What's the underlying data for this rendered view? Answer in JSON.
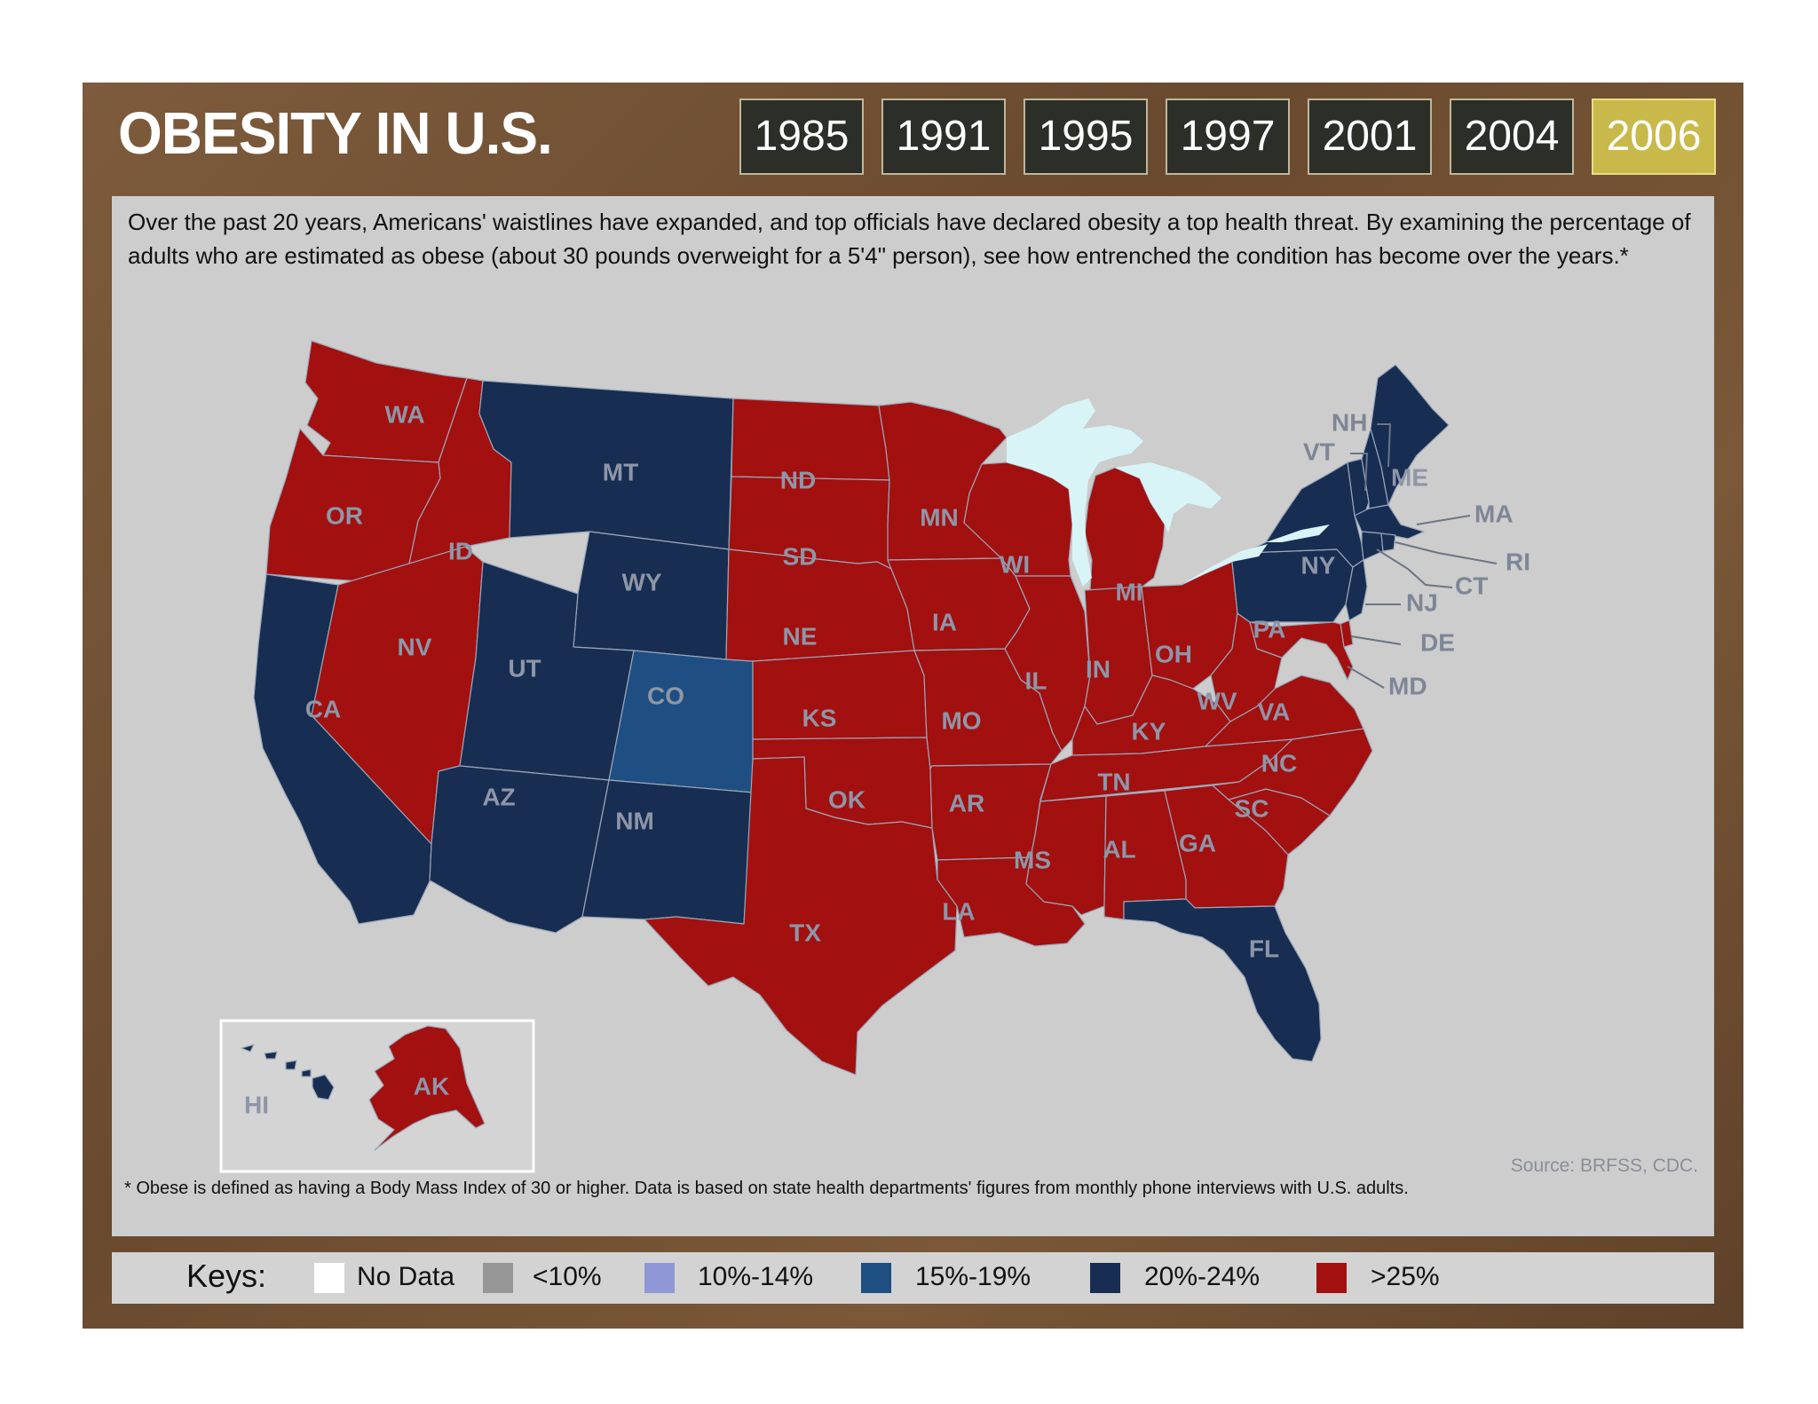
{
  "title": "OBESITY IN U.S.",
  "years": [
    "1985",
    "1991",
    "1995",
    "1997",
    "2001",
    "2004",
    "2006"
  ],
  "selected_year": "2006",
  "intro": "Over the past 20 years, Americans' waistlines have expanded, and top officials have declared obesity a top health threat. By examining the percentage of adults who are estimated as obese (about 30 pounds overweight for a 5'4\" person), see how entrenched the condition has become over the years.*",
  "source": "Source: BRFSS, CDC.",
  "footnote": "* Obese is defined as having a Body Mass Index of 30 or higher. Data is based on state health departments' figures from monthly phone interviews with U.S. adults.",
  "keys": {
    "label": "Keys:",
    "items": [
      {
        "label": "No Data",
        "color": "#ffffff"
      },
      {
        "label": "<10%",
        "color": "#979797"
      },
      {
        "label": "10%-14%",
        "color": "#8f97d6"
      },
      {
        "label": "15%-19%",
        "color": "#1f4e82"
      },
      {
        "label": "20%-24%",
        "color": "#172d52"
      },
      {
        "label": ">25%",
        "color": "#a21010"
      }
    ]
  },
  "colors": {
    "red": "#a21010",
    "navy": "#172d52",
    "blue": "#1f4e82",
    "lakes": "#d8f4f6",
    "frame": "#6f4f32"
  },
  "map": {
    "state_labels": {
      "WA": "WA",
      "OR": "OR",
      "CA": "CA",
      "ID": "ID",
      "NV": "NV",
      "MT": "MT",
      "WY": "WY",
      "UT": "UT",
      "CO": "CO",
      "AZ": "AZ",
      "NM": "NM",
      "ND": "ND",
      "SD": "SD",
      "NE": "NE",
      "KS": "KS",
      "OK": "OK",
      "TX": "TX",
      "MN": "MN",
      "IA": "IA",
      "MO": "MO",
      "AR": "AR",
      "LA": "LA",
      "WI": "WI",
      "IL": "IL",
      "MI": "MI",
      "IN": "IN",
      "OH": "OH",
      "KY": "KY",
      "TN": "TN",
      "MS": "MS",
      "AL": "AL",
      "GA": "GA",
      "FL": "FL",
      "SC": "SC",
      "NC": "NC",
      "VA": "VA",
      "WV": "WV",
      "PA": "PA",
      "NY": "NY",
      "ME": "ME",
      "NH": "NH",
      "VT": "VT",
      "MA": "MA",
      "RI": "RI",
      "CT": "CT",
      "NJ": "NJ",
      "DE": "DE",
      "MD": "MD",
      "HI": "HI",
      "AK": "AK"
    },
    "state_ranges": {
      "WA": ">25%",
      "OR": ">25%",
      "CA": "20%-24%",
      "ID": ">25%",
      "NV": ">25%",
      "MT": "20%-24%",
      "WY": "20%-24%",
      "UT": "20%-24%",
      "CO": "15%-19%",
      "AZ": "20%-24%",
      "NM": "20%-24%",
      "ND": ">25%",
      "SD": ">25%",
      "NE": ">25%",
      "KS": ">25%",
      "OK": ">25%",
      "TX": ">25%",
      "MN": ">25%",
      "IA": ">25%",
      "MO": ">25%",
      "AR": ">25%",
      "LA": ">25%",
      "WI": ">25%",
      "IL": ">25%",
      "MI": ">25%",
      "IN": ">25%",
      "OH": ">25%",
      "KY": ">25%",
      "TN": ">25%",
      "MS": ">25%",
      "AL": ">25%",
      "GA": ">25%",
      "FL": "20%-24%",
      "SC": ">25%",
      "NC": ">25%",
      "VA": ">25%",
      "WV": ">25%",
      "PA": "20%-24%",
      "NY": "20%-24%",
      "ME": "20%-24%",
      "NH": "20%-24%",
      "VT": "20%-24%",
      "MA": "20%-24%",
      "RI": "20%-24%",
      "CT": "20%-24%",
      "NJ": "20%-24%",
      "DE": ">25%",
      "MD": ">25%",
      "HI": "20%-24%",
      "AK": ">25%"
    }
  }
}
